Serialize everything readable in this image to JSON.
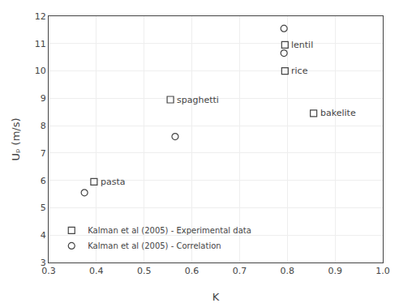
{
  "chart_data": {
    "type": "scatter",
    "xlabel": "K",
    "ylabel": "Uₚ (m/s)",
    "xlim": [
      0.3,
      1.0
    ],
    "ylim": [
      3,
      12
    ],
    "xticks": [
      0.3,
      0.4,
      0.5,
      0.6,
      0.7,
      0.8,
      0.9,
      {
        "value": 1.0,
        "label": "1.0"
      }
    ],
    "yticks": [
      3,
      4,
      5,
      6,
      7,
      8,
      9,
      10,
      11,
      12
    ],
    "grid": true,
    "legend": "lower left",
    "series": [
      {
        "name": "Kalman et al (2005) - Experimental data",
        "marker": "square",
        "color": "#444444",
        "x": [
          0.395,
          0.555,
          0.795,
          0.795,
          0.855
        ],
        "values": [
          5.95,
          8.95,
          10.95,
          10.0,
          8.45
        ],
        "labels": [
          "pasta",
          "spaghetti",
          "lentil",
          "rice",
          "bakelite"
        ]
      },
      {
        "name": "Kalman et al (2005) - Correlation",
        "marker": "circle",
        "color": "#444444",
        "x": [
          0.375,
          0.565,
          0.793,
          0.793
        ],
        "values": [
          5.55,
          7.6,
          11.55,
          10.65
        ]
      }
    ]
  }
}
